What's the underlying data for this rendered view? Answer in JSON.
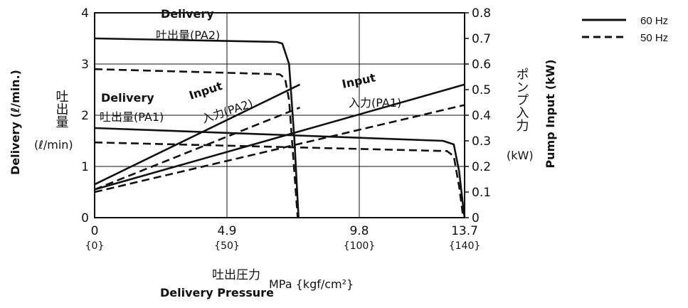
{
  "chart_data": {
    "type": "line",
    "x_ticks": [
      "0",
      "4.9",
      "9.8",
      "13.7"
    ],
    "x_ticks_sub": [
      "{0}",
      "{50}",
      "{100}",
      "{140}"
    ],
    "x_unit": "MPa {kgf/cm²}",
    "xlabel_ja": "吐出圧力",
    "xlabel": "Delivery Pressure",
    "xlim": [
      0,
      13.7
    ],
    "left_ticks": [
      "0",
      "1",
      "2",
      "3",
      "4"
    ],
    "ylim_left": [
      0,
      4
    ],
    "ylabel_left": "Delivery (ℓ/min.)",
    "ylabel_left_ja": "吐出量",
    "ylabel_left_unit": "(ℓ/min)",
    "right_ticks": [
      "0",
      "0.1",
      "0.2",
      "0.3",
      "0.4",
      "0.5",
      "0.6",
      "0.7",
      "0.8"
    ],
    "ylim_right": [
      0,
      0.8
    ],
    "ylabel_right": "Pump Input (kW)",
    "ylabel_right_ja": "ポンプ入力",
    "ylabel_right_unit": "(kW)",
    "legend": [
      {
        "label": "60 Hz",
        "style": "solid"
      },
      {
        "label": "50 Hz",
        "style": "dashed"
      }
    ],
    "annotations": {
      "pa2_delivery": {
        "en": "Delivery",
        "ja": "吐出量(PA2)"
      },
      "pa1_delivery": {
        "en": "Delivery",
        "ja": "吐出量(PA1)"
      },
      "pa2_input": {
        "en": "Input",
        "ja": "入力(PA2)"
      },
      "pa1_input": {
        "en": "Input",
        "ja": "入力(PA1)"
      }
    },
    "series": [
      {
        "axis": "left",
        "style": "solid",
        "points": [
          [
            0,
            3.5
          ],
          [
            6.75,
            3.43
          ],
          [
            6.95,
            3.4
          ],
          [
            7.2,
            3.0
          ],
          [
            7.4,
            1.5
          ],
          [
            7.55,
            0
          ]
        ]
      },
      {
        "axis": "left",
        "style": "dashed",
        "points": [
          [
            0,
            2.9
          ],
          [
            6.85,
            2.8
          ],
          [
            7.05,
            2.72
          ],
          [
            7.2,
            2.3
          ],
          [
            7.38,
            1.0
          ],
          [
            7.52,
            0
          ]
        ]
      },
      {
        "axis": "left",
        "style": "solid",
        "points": [
          [
            0,
            1.75
          ],
          [
            12.9,
            1.5
          ],
          [
            13.3,
            1.43
          ],
          [
            13.5,
            0.9
          ],
          [
            13.65,
            0.2
          ],
          [
            13.7,
            0
          ]
        ]
      },
      {
        "axis": "left",
        "style": "dashed",
        "points": [
          [
            0,
            1.47
          ],
          [
            13.05,
            1.3
          ],
          [
            13.3,
            1.2
          ],
          [
            13.5,
            0.6
          ],
          [
            13.65,
            0
          ]
        ]
      },
      {
        "axis": "right",
        "style": "solid",
        "points": [
          [
            0,
            0.13
          ],
          [
            7.6,
            0.52
          ]
        ]
      },
      {
        "axis": "right",
        "style": "dashed",
        "points": [
          [
            0,
            0.11
          ],
          [
            7.6,
            0.43
          ]
        ]
      },
      {
        "axis": "right",
        "style": "solid",
        "points": [
          [
            0,
            0.11
          ],
          [
            13.7,
            0.52
          ]
        ]
      },
      {
        "axis": "right",
        "style": "dashed",
        "points": [
          [
            0,
            0.1
          ],
          [
            13.7,
            0.44
          ]
        ]
      }
    ]
  }
}
